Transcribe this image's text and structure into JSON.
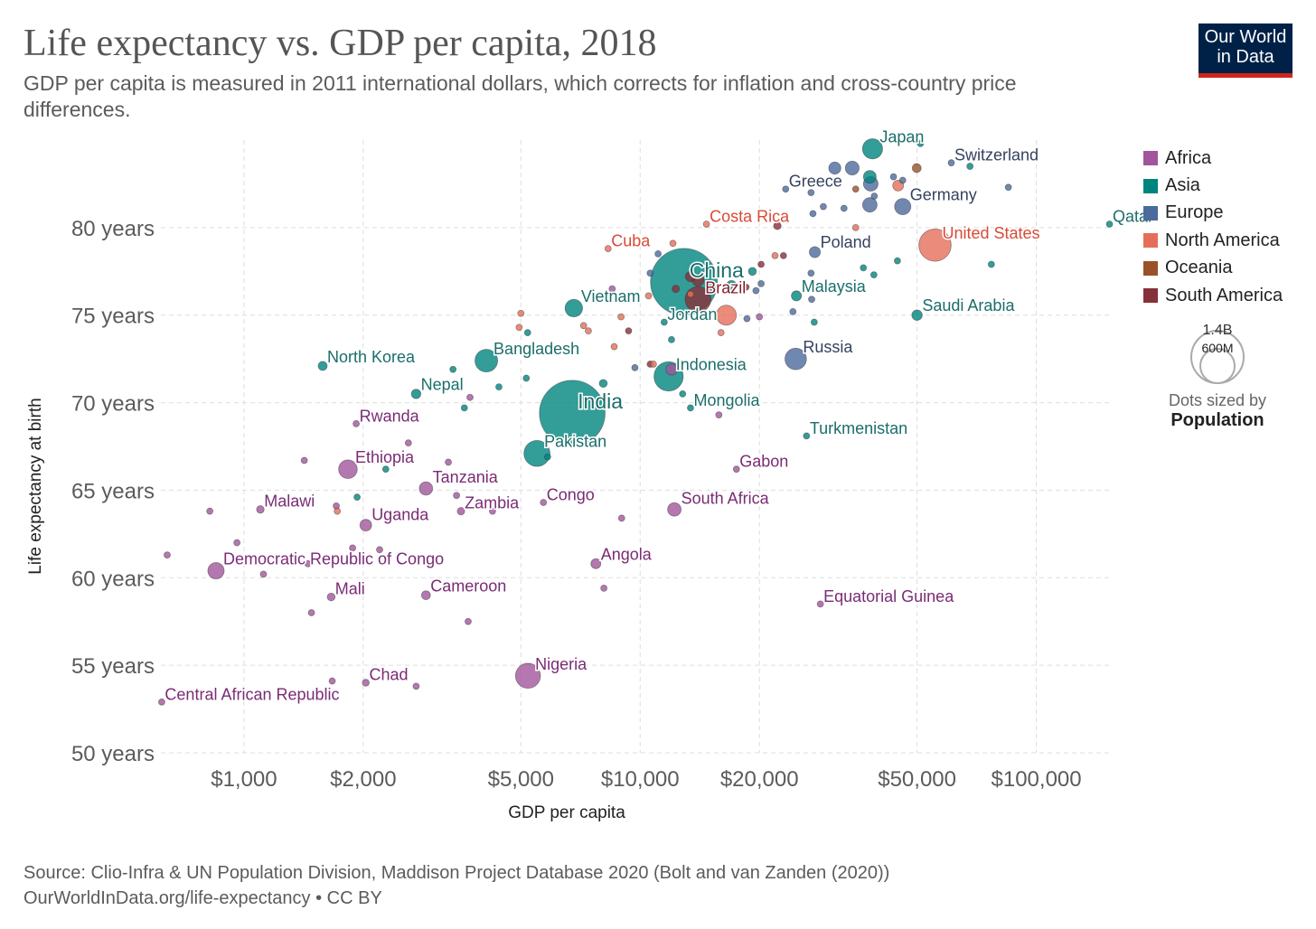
{
  "header": {
    "title": "Life expectancy vs. GDP per capita, 2018",
    "subtitle": "GDP per capita is measured in 2011 international dollars, which corrects for inflation and cross-country price differences.",
    "logo": "Our World in Data"
  },
  "footer": {
    "source": "Source: Clio-Infra & UN Population Division, Maddison Project Database 2020 (Bolt and van Zanden (2020))",
    "link": "OurWorldInData.org/life-expectancy • CC BY"
  },
  "size_legend": {
    "large": "1.4B",
    "small": "600M",
    "caption": "Dots sized by",
    "variable": "Population"
  },
  "chart_data": {
    "type": "scatter",
    "xlabel": "GDP per capita",
    "ylabel": "Life expectancy at birth",
    "x_scale": "log",
    "xlim": [
      617,
      155000
    ],
    "ylim": [
      50,
      85
    ],
    "grid": true,
    "legend_position": "right",
    "x_ticks": [
      {
        "v": 1000,
        "label": "$1,000"
      },
      {
        "v": 2000,
        "label": "$2,000"
      },
      {
        "v": 5000,
        "label": "$5,000"
      },
      {
        "v": 10000,
        "label": "$10,000"
      },
      {
        "v": 20000,
        "label": "$20,000"
      },
      {
        "v": 50000,
        "label": "$50,000"
      },
      {
        "v": 100000,
        "label": "$100,000"
      }
    ],
    "y_ticks": [
      {
        "v": 50,
        "label": "50 years"
      },
      {
        "v": 55,
        "label": "55 years"
      },
      {
        "v": 60,
        "label": "60 years"
      },
      {
        "v": 65,
        "label": "65 years"
      },
      {
        "v": 70,
        "label": "70 years"
      },
      {
        "v": 75,
        "label": "75 years"
      },
      {
        "v": 80,
        "label": "80 years"
      }
    ],
    "continents": [
      {
        "name": "Africa",
        "color": "#a2559c",
        "label_color": "#7a2b74"
      },
      {
        "name": "Asia",
        "color": "#00847e",
        "label_color": "#1b6e6a"
      },
      {
        "name": "Europe",
        "color": "#4c6a9c",
        "label_color": "#34425e"
      },
      {
        "name": "North America",
        "color": "#e56e5a",
        "label_color": "#d84a37"
      },
      {
        "name": "Oceania",
        "color": "#9a5129",
        "label_color": "#9a5129"
      },
      {
        "name": "South America",
        "color": "#883039",
        "label_color": "#7d1d26"
      }
    ],
    "points": [
      {
        "name": "China",
        "c": "Asia",
        "gdp": 12900,
        "life": 76.9,
        "pop": 1400,
        "label": true,
        "big": true
      },
      {
        "name": "India",
        "c": "Asia",
        "gdp": 6740,
        "life": 69.4,
        "pop": 1350,
        "label": true,
        "big": true
      },
      {
        "name": "Japan",
        "c": "Asia",
        "gdp": 38600,
        "life": 84.5,
        "pop": 127,
        "label": true
      },
      {
        "name": "Switzerland",
        "c": "Europe",
        "gdp": 61000,
        "life": 83.7,
        "pop": 8.5,
        "label": true
      },
      {
        "name": "Greece",
        "c": "Europe",
        "gdp": 23300,
        "life": 82.2,
        "pop": 10.7,
        "label": true
      },
      {
        "name": "Germany",
        "c": "Europe",
        "gdp": 46000,
        "life": 81.2,
        "pop": 83,
        "label": true
      },
      {
        "name": "Costa Rica",
        "c": "North America",
        "gdp": 14700,
        "life": 80.2,
        "pop": 5,
        "label": true
      },
      {
        "name": "Qatar",
        "c": "Asia",
        "gdp": 153000,
        "life": 80.2,
        "pop": 2.8,
        "label": true
      },
      {
        "name": "United States",
        "c": "North America",
        "gdp": 55500,
        "life": 79.0,
        "pop": 327,
        "label": true
      },
      {
        "name": "Cuba",
        "c": "North America",
        "gdp": 8300,
        "life": 78.8,
        "pop": 11.3,
        "label": true
      },
      {
        "name": "Poland",
        "c": "Europe",
        "gdp": 27600,
        "life": 78.6,
        "pop": 38,
        "label": true
      },
      {
        "name": "Brazil",
        "c": "South America",
        "gdp": 14000,
        "life": 75.9,
        "pop": 209,
        "label": true
      },
      {
        "name": "Malaysia",
        "c": "Asia",
        "gdp": 24800,
        "life": 76.1,
        "pop": 32,
        "label": true
      },
      {
        "name": "Vietnam",
        "c": "Asia",
        "gdp": 6800,
        "life": 75.4,
        "pop": 96,
        "label": true
      },
      {
        "name": "Jordan",
        "c": "Asia",
        "gdp": 11500,
        "life": 74.6,
        "pop": 10,
        "label": true
      },
      {
        "name": "Saudi Arabia",
        "c": "Asia",
        "gdp": 50000,
        "life": 75.0,
        "pop": 34,
        "label": true
      },
      {
        "name": "Bangladesh",
        "c": "Asia",
        "gdp": 4090,
        "life": 72.4,
        "pop": 161,
        "label": true
      },
      {
        "name": "North Korea",
        "c": "Asia",
        "gdp": 1580,
        "life": 72.1,
        "pop": 25.5,
        "label": true
      },
      {
        "name": "Indonesia",
        "c": "Asia",
        "gdp": 11800,
        "life": 71.5,
        "pop": 268,
        "label": true
      },
      {
        "name": "Russia",
        "c": "Europe",
        "gdp": 24700,
        "life": 72.5,
        "pop": 145,
        "label": true
      },
      {
        "name": "Nepal",
        "c": "Asia",
        "gdp": 2720,
        "life": 70.5,
        "pop": 28,
        "label": true
      },
      {
        "name": "Mongolia",
        "c": "Asia",
        "gdp": 13400,
        "life": 69.7,
        "pop": 3.2,
        "label": true
      },
      {
        "name": "Turkmenistan",
        "c": "Asia",
        "gdp": 26300,
        "life": 68.1,
        "pop": 5.9,
        "label": true
      },
      {
        "name": "Rwanda",
        "c": "Africa",
        "gdp": 1920,
        "life": 68.8,
        "pop": 12.3,
        "label": true
      },
      {
        "name": "Pakistan",
        "c": "Asia",
        "gdp": 5490,
        "life": 67.1,
        "pop": 212,
        "label": true
      },
      {
        "name": "Ethiopia",
        "c": "Africa",
        "gdp": 1830,
        "life": 66.2,
        "pop": 109,
        "label": true
      },
      {
        "name": "Gabon",
        "c": "Africa",
        "gdp": 17500,
        "life": 66.2,
        "pop": 2.1,
        "label": true
      },
      {
        "name": "Tanzania",
        "c": "Africa",
        "gdp": 2880,
        "life": 65.1,
        "pop": 56,
        "label": true
      },
      {
        "name": "Congo",
        "c": "Africa",
        "gdp": 5700,
        "life": 64.3,
        "pop": 5.2,
        "label": true
      },
      {
        "name": "Malawi",
        "c": "Africa",
        "gdp": 1100,
        "life": 63.9,
        "pop": 18,
        "label": true
      },
      {
        "name": "Zambia",
        "c": "Africa",
        "gdp": 3530,
        "life": 63.8,
        "pop": 17.4,
        "label": true
      },
      {
        "name": "South Africa",
        "c": "Africa",
        "gdp": 12200,
        "life": 63.9,
        "pop": 57,
        "label": true
      },
      {
        "name": "Uganda",
        "c": "Africa",
        "gdp": 2030,
        "life": 63.0,
        "pop": 43,
        "label": true
      },
      {
        "name": "Angola",
        "c": "Africa",
        "gdp": 7730,
        "life": 60.8,
        "pop": 31,
        "label": true
      },
      {
        "name": "Democratic Republic of Congo",
        "c": "Africa",
        "gdp": 850,
        "life": 60.4,
        "pop": 84,
        "label": true
      },
      {
        "name": "Mali",
        "c": "Africa",
        "gdp": 1660,
        "life": 58.9,
        "pop": 19,
        "label": true
      },
      {
        "name": "Cameroon",
        "c": "Africa",
        "gdp": 2880,
        "life": 59.0,
        "pop": 25,
        "label": true
      },
      {
        "name": "Equatorial Guinea",
        "c": "Africa",
        "gdp": 28500,
        "life": 58.5,
        "pop": 1.3,
        "label": true
      },
      {
        "name": "Nigeria",
        "c": "Africa",
        "gdp": 5210,
        "life": 54.4,
        "pop": 196,
        "label": true
      },
      {
        "name": "Chad",
        "c": "Africa",
        "gdp": 2030,
        "life": 54.0,
        "pop": 15,
        "label": true
      },
      {
        "name": "Central African Republic",
        "c": "Africa",
        "gdp": 620,
        "life": 52.9,
        "pop": 4.7,
        "label": true
      },
      {
        "c": "Africa",
        "gdp": 640,
        "life": 61.3,
        "pop": 5
      },
      {
        "c": "Africa",
        "gdp": 820,
        "life": 63.8,
        "pop": 5
      },
      {
        "c": "Africa",
        "gdp": 960,
        "life": 62.0,
        "pop": 5
      },
      {
        "c": "Africa",
        "gdp": 1120,
        "life": 60.2,
        "pop": 12
      },
      {
        "c": "Africa",
        "gdp": 1420,
        "life": 66.7,
        "pop": 8
      },
      {
        "c": "Africa",
        "gdp": 1450,
        "life": 60.8,
        "pop": 4
      },
      {
        "c": "Africa",
        "gdp": 1480,
        "life": 58.0,
        "pop": 5
      },
      {
        "c": "Africa",
        "gdp": 1710,
        "life": 64.1,
        "pop": 4
      },
      {
        "c": "Africa",
        "gdp": 1880,
        "life": 61.7,
        "pop": 4
      },
      {
        "c": "Africa",
        "gdp": 2200,
        "life": 61.6,
        "pop": 3
      },
      {
        "c": "Africa",
        "gdp": 2600,
        "life": 67.7,
        "pop": 5
      },
      {
        "c": "Africa",
        "gdp": 2720,
        "life": 53.8,
        "pop": 4
      },
      {
        "c": "Africa",
        "gdp": 3280,
        "life": 66.6,
        "pop": 5
      },
      {
        "c": "Africa",
        "gdp": 3440,
        "life": 64.7,
        "pop": 4
      },
      {
        "c": "Africa",
        "gdp": 3680,
        "life": 57.5,
        "pop": 6
      },
      {
        "c": "Africa",
        "gdp": 3720,
        "life": 70.3,
        "pop": 4
      },
      {
        "c": "Africa",
        "gdp": 4240,
        "life": 63.8,
        "pop": 4
      },
      {
        "c": "Africa",
        "gdp": 8100,
        "life": 59.4,
        "pop": 4
      },
      {
        "c": "Africa",
        "gdp": 8980,
        "life": 63.4,
        "pop": 4
      },
      {
        "c": "Africa",
        "gdp": 15800,
        "life": 69.3,
        "pop": 4
      },
      {
        "c": "Africa",
        "gdp": 20000,
        "life": 74.9,
        "pop": 4
      },
      {
        "c": "Africa",
        "gdp": 8500,
        "life": 76.5,
        "pop": 8
      },
      {
        "c": "Africa",
        "gdp": 12000,
        "life": 71.9,
        "pop": 40
      },
      {
        "c": "Africa",
        "gdp": 1670,
        "life": 54.1,
        "pop": 4
      },
      {
        "c": "Asia",
        "gdp": 1930,
        "life": 64.6,
        "pop": 11
      },
      {
        "c": "Asia",
        "gdp": 2280,
        "life": 66.2,
        "pop": 9
      },
      {
        "c": "Asia",
        "gdp": 3600,
        "life": 69.7,
        "pop": 4
      },
      {
        "c": "Asia",
        "gdp": 3370,
        "life": 71.9,
        "pop": 3
      },
      {
        "c": "Asia",
        "gdp": 4400,
        "life": 70.9,
        "pop": 4
      },
      {
        "c": "Asia",
        "gdp": 5160,
        "life": 71.4,
        "pop": 5
      },
      {
        "c": "Asia",
        "gdp": 5200,
        "life": 74.0,
        "pop": 3
      },
      {
        "c": "Asia",
        "gdp": 5840,
        "life": 66.9,
        "pop": 12
      },
      {
        "c": "Asia",
        "gdp": 8070,
        "life": 71.1,
        "pop": 20
      },
      {
        "c": "Asia",
        "gdp": 12000,
        "life": 73.6,
        "pop": 4
      },
      {
        "c": "Asia",
        "gdp": 12800,
        "life": 70.5,
        "pop": 9
      },
      {
        "c": "Asia",
        "gdp": 19200,
        "life": 77.5,
        "pop": 20
      },
      {
        "c": "Asia",
        "gdp": 17000,
        "life": 76.7,
        "pop": 30
      },
      {
        "c": "Asia",
        "gdp": 36600,
        "life": 77.7,
        "pop": 4
      },
      {
        "c": "Asia",
        "gdp": 38900,
        "life": 77.3,
        "pop": 4
      },
      {
        "c": "Asia",
        "gdp": 44600,
        "life": 78.1,
        "pop": 5
      },
      {
        "c": "Asia",
        "gdp": 77000,
        "life": 77.9,
        "pop": 4
      },
      {
        "c": "Asia",
        "gdp": 51000,
        "life": 84.8,
        "pop": 4
      },
      {
        "c": "Asia",
        "gdp": 38000,
        "life": 82.9,
        "pop": 51
      },
      {
        "c": "Asia",
        "gdp": 68000,
        "life": 83.5,
        "pop": 5.6
      },
      {
        "c": "Asia",
        "gdp": 27500,
        "life": 74.6,
        "pop": 4
      },
      {
        "c": "Europe",
        "gdp": 9700,
        "life": 72.0,
        "pop": 10
      },
      {
        "c": "Europe",
        "gdp": 10600,
        "life": 77.4,
        "pop": 4
      },
      {
        "c": "Europe",
        "gdp": 11100,
        "life": 78.5,
        "pop": 3
      },
      {
        "c": "Europe",
        "gdp": 19600,
        "life": 76.4,
        "pop": 5
      },
      {
        "c": "Europe",
        "gdp": 18600,
        "life": 74.8,
        "pop": 4
      },
      {
        "c": "Europe",
        "gdp": 24300,
        "life": 75.2,
        "pop": 3
      },
      {
        "c": "Europe",
        "gdp": 27100,
        "life": 75.9,
        "pop": 3
      },
      {
        "c": "Europe",
        "gdp": 27000,
        "life": 77.4,
        "pop": 3
      },
      {
        "c": "Europe",
        "gdp": 27000,
        "life": 82.0,
        "pop": 5
      },
      {
        "c": "Europe",
        "gdp": 27300,
        "life": 80.8,
        "pop": 4
      },
      {
        "c": "Europe",
        "gdp": 29000,
        "life": 81.2,
        "pop": 4
      },
      {
        "c": "Europe",
        "gdp": 31000,
        "life": 83.4,
        "pop": 46
      },
      {
        "c": "Europe",
        "gdp": 34300,
        "life": 83.4,
        "pop": 60
      },
      {
        "c": "Europe",
        "gdp": 32700,
        "life": 81.1,
        "pop": 5
      },
      {
        "c": "Europe",
        "gdp": 38000,
        "life": 81.3,
        "pop": 66
      },
      {
        "c": "Europe",
        "gdp": 39000,
        "life": 81.8,
        "pop": 5
      },
      {
        "c": "Europe",
        "gdp": 43600,
        "life": 82.9,
        "pop": 5
      },
      {
        "c": "Europe",
        "gdp": 46000,
        "life": 82.7,
        "pop": 5
      },
      {
        "c": "Europe",
        "gdp": 85000,
        "life": 82.3,
        "pop": 4
      },
      {
        "c": "Europe",
        "gdp": 38200,
        "life": 82.5,
        "pop": 67
      },
      {
        "c": "Europe",
        "gdp": 20200,
        "life": 76.8,
        "pop": 4
      },
      {
        "c": "North America",
        "gdp": 5000,
        "life": 75.1,
        "pop": 4
      },
      {
        "c": "North America",
        "gdp": 4950,
        "life": 74.3,
        "pop": 4
      },
      {
        "c": "North America",
        "gdp": 7200,
        "life": 74.4,
        "pop": 4
      },
      {
        "c": "North America",
        "gdp": 7400,
        "life": 74.1,
        "pop": 4
      },
      {
        "c": "North America",
        "gdp": 8600,
        "life": 73.2,
        "pop": 4
      },
      {
        "c": "North America",
        "gdp": 8950,
        "life": 74.9,
        "pop": 4
      },
      {
        "c": "North America",
        "gdp": 10500,
        "life": 76.1,
        "pop": 4
      },
      {
        "c": "North America",
        "gdp": 12100,
        "life": 79.1,
        "pop": 4
      },
      {
        "c": "North America",
        "gdp": 16000,
        "life": 74.0,
        "pop": 4
      },
      {
        "c": "North America",
        "gdp": 16500,
        "life": 75.0,
        "pop": 126
      },
      {
        "c": "North America",
        "gdp": 21900,
        "life": 78.4,
        "pop": 4
      },
      {
        "c": "North America",
        "gdp": 35000,
        "life": 80.0,
        "pop": 3
      },
      {
        "c": "North America",
        "gdp": 44800,
        "life": 82.4,
        "pop": 37
      },
      {
        "c": "North America",
        "gdp": 1720,
        "life": 63.8,
        "pop": 4
      },
      {
        "c": "North America",
        "gdp": 10800,
        "life": 72.2,
        "pop": 4
      },
      {
        "c": "North America",
        "gdp": 13400,
        "life": 76.2,
        "pop": 4
      },
      {
        "c": "Oceania",
        "gdp": 35000,
        "life": 82.2,
        "pop": 4.8
      },
      {
        "c": "Oceania",
        "gdp": 49900,
        "life": 83.4,
        "pop": 25
      },
      {
        "c": "South America",
        "gdp": 9350,
        "life": 74.1,
        "pop": 4
      },
      {
        "c": "South America",
        "gdp": 10600,
        "life": 72.2,
        "pop": 11
      },
      {
        "c": "South America",
        "gdp": 12300,
        "life": 76.5,
        "pop": 17
      },
      {
        "c": "South America",
        "gdp": 13400,
        "life": 77.2,
        "pop": 32
      },
      {
        "c": "South America",
        "gdp": 18500,
        "life": 76.6,
        "pop": 4
      },
      {
        "c": "South America",
        "gdp": 20200,
        "life": 77.9,
        "pop": 4
      },
      {
        "c": "South America",
        "gdp": 23000,
        "life": 78.4,
        "pop": 4
      },
      {
        "c": "South America",
        "gdp": 22200,
        "life": 80.1,
        "pop": 18
      },
      {
        "c": "South America",
        "gdp": 14000,
        "life": 77.0,
        "pop": 45
      }
    ]
  }
}
